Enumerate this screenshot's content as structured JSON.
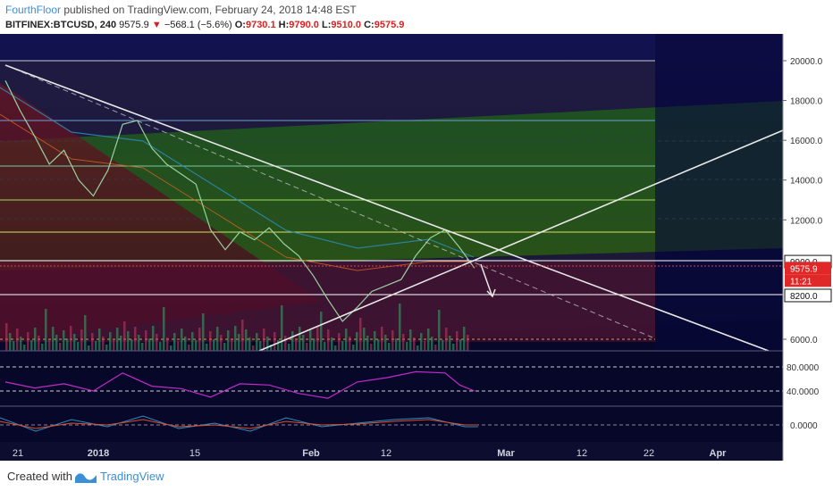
{
  "header": {
    "author": "FourthFloor",
    "published_text": "published on TradingView.com, February 24, 2018 14:48 EST",
    "symbol": "BITFINEX:BTCUSD, 240",
    "last": "9575.9",
    "change": "−568.1 (−5.6%)",
    "open_label": "O:",
    "open": "9730.1",
    "high_label": "H:",
    "high": "9790.0",
    "low_label": "L:",
    "low": "9510.0",
    "close_label": "C:",
    "close": "9575.9"
  },
  "footer": {
    "created_with": "Created with",
    "brand": "TradingView"
  },
  "colors": {
    "background": "#0a0a2a",
    "price_axis_bg": "#ffffff",
    "rsi_line": "#c02cc8",
    "trendline": "#e8e8e8",
    "accent": "#3a8fd6",
    "down": "#e02020"
  },
  "chart_data": {
    "type": "line",
    "price_axis": {
      "ticks": [
        "20000.0",
        "18000.0",
        "16000.0",
        "14000.0",
        "12000.0",
        "6000.0"
      ],
      "tick_values": [
        20000,
        18000,
        16000,
        14000,
        12000,
        6000
      ],
      "markers": [
        {
          "label": "9900.0",
          "value": 9900,
          "style": "box-dark"
        },
        {
          "label": "9575.9",
          "value": 9575.9,
          "style": "box-red"
        },
        {
          "label": "11:21",
          "value": 9150,
          "style": "box-red"
        },
        {
          "label": "8200.0",
          "value": 8200,
          "style": "box-dark"
        }
      ]
    },
    "rsi_axis": {
      "ticks": [
        "80.0000",
        "40.0000"
      ],
      "tick_values": [
        80,
        40
      ]
    },
    "macd_axis": {
      "ticks": [
        "0.0000"
      ],
      "tick_values": [
        0
      ]
    },
    "time_axis": {
      "ticks": [
        "21",
        "2018",
        "15",
        "Feb",
        "12",
        "Mar",
        "12",
        "22",
        "Apr"
      ],
      "bold": [
        false,
        true,
        false,
        true,
        false,
        true,
        false,
        false,
        true
      ]
    },
    "price_series": [
      {
        "x": 0,
        "y": 19000
      },
      {
        "x": 2,
        "y": 17500
      },
      {
        "x": 4,
        "y": 16200
      },
      {
        "x": 6,
        "y": 14800
      },
      {
        "x": 8,
        "y": 15500
      },
      {
        "x": 10,
        "y": 14000
      },
      {
        "x": 12,
        "y": 13200
      },
      {
        "x": 14,
        "y": 14500
      },
      {
        "x": 16,
        "y": 16800
      },
      {
        "x": 18,
        "y": 17000
      },
      {
        "x": 20,
        "y": 15600
      },
      {
        "x": 22,
        "y": 14800
      },
      {
        "x": 24,
        "y": 14300
      },
      {
        "x": 26,
        "y": 13800
      },
      {
        "x": 28,
        "y": 11500
      },
      {
        "x": 30,
        "y": 10500
      },
      {
        "x": 32,
        "y": 11400
      },
      {
        "x": 34,
        "y": 11000
      },
      {
        "x": 36,
        "y": 11600
      },
      {
        "x": 38,
        "y": 10800
      },
      {
        "x": 40,
        "y": 10200
      },
      {
        "x": 42,
        "y": 9200
      },
      {
        "x": 44,
        "y": 8000
      },
      {
        "x": 46,
        "y": 6900
      },
      {
        "x": 48,
        "y": 7600
      },
      {
        "x": 50,
        "y": 8400
      },
      {
        "x": 52,
        "y": 8700
      },
      {
        "x": 54,
        "y": 9000
      },
      {
        "x": 56,
        "y": 10200
      },
      {
        "x": 58,
        "y": 11100
      },
      {
        "x": 60,
        "y": 11500
      },
      {
        "x": 62,
        "y": 10600
      },
      {
        "x": 64,
        "y": 9575.9
      }
    ],
    "rsi_series": [
      {
        "x": 0,
        "y": 55
      },
      {
        "x": 4,
        "y": 45
      },
      {
        "x": 8,
        "y": 52
      },
      {
        "x": 12,
        "y": 40
      },
      {
        "x": 16,
        "y": 70
      },
      {
        "x": 20,
        "y": 48
      },
      {
        "x": 24,
        "y": 44
      },
      {
        "x": 28,
        "y": 30
      },
      {
        "x": 32,
        "y": 52
      },
      {
        "x": 36,
        "y": 50
      },
      {
        "x": 40,
        "y": 36
      },
      {
        "x": 44,
        "y": 28
      },
      {
        "x": 48,
        "y": 55
      },
      {
        "x": 52,
        "y": 62
      },
      {
        "x": 56,
        "y": 72
      },
      {
        "x": 60,
        "y": 70
      },
      {
        "x": 62,
        "y": 50
      },
      {
        "x": 64,
        "y": 40
      }
    ]
  }
}
